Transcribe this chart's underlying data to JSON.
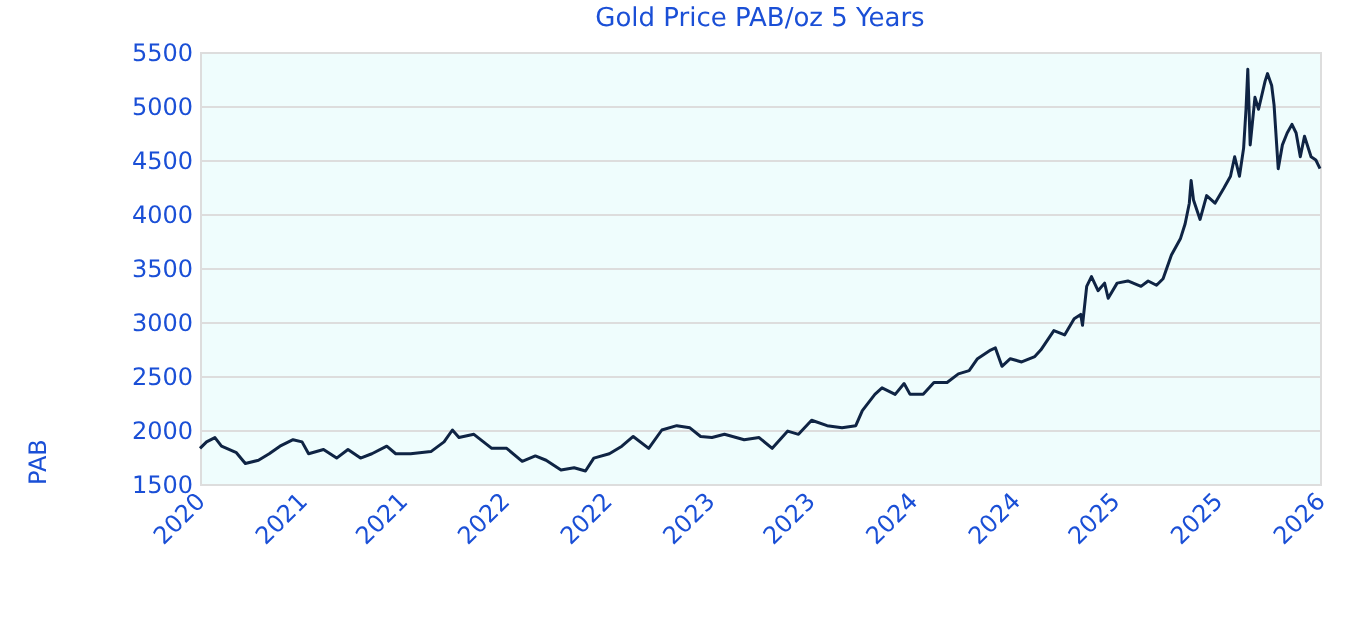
{
  "chart_data": {
    "type": "line",
    "title": "Gold Price PAB/oz 5 Years",
    "ylabel": "PAB",
    "x": [
      "2020-12-28",
      "2021-01-08",
      "2021-01-22",
      "2021-02-02",
      "2021-02-27",
      "2021-03-14",
      "2021-04-05",
      "2021-04-23",
      "2021-05-11",
      "2021-06-02",
      "2021-06-17",
      "2021-06-28",
      "2021-07-23",
      "2021-08-14",
      "2021-09-02",
      "2021-09-23",
      "2021-10-12",
      "2021-11-06",
      "2021-11-21",
      "2021-12-16",
      "2022-01-19",
      "2022-02-10",
      "2022-02-24",
      "2022-03-07",
      "2022-04-01",
      "2022-05-01",
      "2022-05-26",
      "2022-06-21",
      "2022-07-13",
      "2022-07-31",
      "2022-08-25",
      "2022-09-16",
      "2022-10-05",
      "2022-10-19",
      "2022-11-14",
      "2022-12-05",
      "2022-12-24",
      "2023-01-19",
      "2023-02-10",
      "2023-03-07",
      "2023-03-29",
      "2023-04-16",
      "2023-05-05",
      "2023-05-26",
      "2023-06-28",
      "2023-07-23",
      "2023-08-14",
      "2023-09-09",
      "2023-09-27",
      "2023-10-19",
      "2023-11-14",
      "2023-12-09",
      "2024-01-01",
      "2024-01-12",
      "2024-02-02",
      "2024-02-14",
      "2024-03-07",
      "2024-03-22",
      "2024-04-01",
      "2024-04-23",
      "2024-05-11",
      "2024-06-02",
      "2024-06-21",
      "2024-07-09",
      "2024-07-23",
      "2024-08-14",
      "2024-08-22",
      "2024-09-02",
      "2024-09-16",
      "2024-10-05",
      "2024-10-27",
      "2024-11-06",
      "2024-11-28",
      "2024-12-16",
      "2025-01-01",
      "2025-01-12",
      "2025-01-15",
      "2025-01-22",
      "2025-01-30",
      "2025-02-10",
      "2025-02-21",
      "2025-02-27",
      "2025-03-14",
      "2025-04-01",
      "2025-04-23",
      "2025-05-05",
      "2025-05-19",
      "2025-05-30",
      "2025-06-13",
      "2025-06-28",
      "2025-07-06",
      "2025-07-13",
      "2025-07-16",
      "2025-07-20",
      "2025-07-31",
      "2025-08-11",
      "2025-08-25",
      "2025-09-09",
      "2025-09-20",
      "2025-09-27",
      "2025-10-05",
      "2025-10-12",
      "2025-10-16",
      "2025-10-19",
      "2025-10-23",
      "2025-10-31",
      "2025-11-06",
      "2025-11-17",
      "2025-11-21",
      "2025-11-28",
      "2025-12-02",
      "2025-12-09",
      "2025-12-16",
      "2025-12-24",
      "2026-01-01",
      "2026-01-08",
      "2026-01-15",
      "2026-01-22",
      "2026-02-02",
      "2026-02-10",
      "2026-02-17"
    ],
    "series": [
      {
        "color": "#0f2444",
        "values": [
          1830,
          1890,
          1930,
          1850,
          1790,
          1690,
          1720,
          1780,
          1850,
          1910,
          1890,
          1780,
          1820,
          1740,
          1820,
          1740,
          1780,
          1850,
          1780,
          1780,
          1800,
          1890,
          2000,
          1930,
          1960,
          1830,
          1830,
          1710,
          1760,
          1720,
          1630,
          1650,
          1620,
          1740,
          1780,
          1850,
          1940,
          1830,
          2000,
          2040,
          2020,
          1940,
          1930,
          1960,
          1910,
          1930,
          1830,
          1990,
          1960,
          2090,
          2040,
          2020,
          2040,
          2180,
          2330,
          2390,
          2330,
          2430,
          2330,
          2330,
          2440,
          2440,
          2520,
          2550,
          2660,
          2740,
          2760,
          2590,
          2660,
          2630,
          2680,
          2740,
          2920,
          2880,
          3030,
          3070,
          2970,
          3330,
          3420,
          3290,
          3360,
          3220,
          3360,
          3380,
          3330,
          3380,
          3340,
          3400,
          3620,
          3770,
          3910,
          4100,
          4310,
          4130,
          3950,
          4170,
          4100,
          4240,
          4350,
          4530,
          4350,
          4610,
          4970,
          5340,
          4640,
          5080,
          4970,
          5230,
          5300,
          5190,
          5010,
          4420,
          4640,
          4750,
          4830,
          4750,
          4530,
          4720,
          4530,
          4500,
          4420
        ]
      }
    ],
    "xlim": [
      "2020-12-28",
      "2026-02-17"
    ],
    "xticks": [
      {
        "value": "2020-12-28",
        "label": "2020"
      },
      {
        "value": "2021-06-17",
        "label": "2021"
      },
      {
        "value": "2021-12-02",
        "label": "2021"
      },
      {
        "value": "2022-05-22",
        "label": "2022"
      },
      {
        "value": "2022-11-10",
        "label": "2022"
      },
      {
        "value": "2023-05-01",
        "label": "2023"
      },
      {
        "value": "2023-10-16",
        "label": "2023"
      },
      {
        "value": "2024-04-05",
        "label": "2024"
      },
      {
        "value": "2024-09-24",
        "label": "2024"
      },
      {
        "value": "2025-03-10",
        "label": "2025"
      },
      {
        "value": "2025-08-29",
        "label": "2025"
      },
      {
        "value": "2026-02-17",
        "label": "2026"
      }
    ],
    "ylim": [
      1500,
      5500
    ],
    "yticks": [
      1500,
      2000,
      2500,
      3000,
      3500,
      4000,
      4500,
      5000,
      5500
    ],
    "grid": "y",
    "marker": "none",
    "line_style": "solid"
  }
}
